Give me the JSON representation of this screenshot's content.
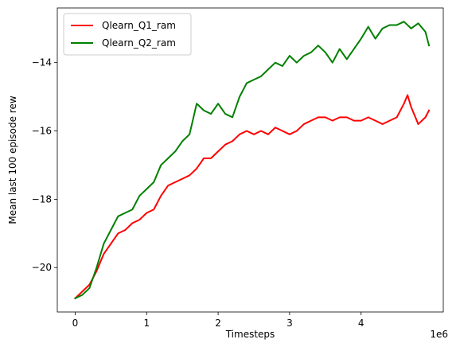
{
  "chart_data": {
    "type": "line",
    "xlabel": "Timesteps",
    "ylabel": "Mean last 100 episode rew",
    "x_offset_label": "1e6",
    "xlim": [
      -0.25,
      5.15
    ],
    "ylim": [
      -21.3,
      -12.4
    ],
    "xticks": [
      0,
      1,
      2,
      3,
      4
    ],
    "xtick_labels": [
      "0",
      "1",
      "2",
      "3",
      "4"
    ],
    "yticks": [
      -20,
      -18,
      -16,
      -14
    ],
    "ytick_labels": [
      "−20",
      "−18",
      "−16",
      "−14"
    ],
    "grid": false,
    "legend": "top-left",
    "series": [
      {
        "name": "Qlearn_Q1_ram",
        "color": "#ff0000",
        "x": [
          0,
          0.1,
          0.2,
          0.3,
          0.4,
          0.5,
          0.6,
          0.7,
          0.8,
          0.9,
          1.0,
          1.1,
          1.2,
          1.3,
          1.4,
          1.5,
          1.6,
          1.7,
          1.8,
          1.9,
          2.0,
          2.1,
          2.2,
          2.3,
          2.4,
          2.5,
          2.6,
          2.7,
          2.8,
          2.9,
          3.0,
          3.1,
          3.2,
          3.3,
          3.4,
          3.5,
          3.6,
          3.7,
          3.8,
          3.9,
          4.0,
          4.1,
          4.2,
          4.3,
          4.4,
          4.5,
          4.6,
          4.65,
          4.7,
          4.8,
          4.9,
          4.95
        ],
        "y": [
          -20.9,
          -20.7,
          -20.5,
          -20.1,
          -19.6,
          -19.3,
          -19.0,
          -18.9,
          -18.7,
          -18.6,
          -18.4,
          -18.3,
          -17.9,
          -17.6,
          -17.5,
          -17.4,
          -17.3,
          -17.1,
          -16.8,
          -16.8,
          -16.6,
          -16.4,
          -16.3,
          -16.1,
          -16.0,
          -16.1,
          -16.0,
          -16.1,
          -15.9,
          -16.0,
          -16.1,
          -16.0,
          -15.8,
          -15.7,
          -15.6,
          -15.6,
          -15.7,
          -15.6,
          -15.6,
          -15.7,
          -15.7,
          -15.6,
          -15.7,
          -15.8,
          -15.7,
          -15.6,
          -15.2,
          -14.95,
          -15.3,
          -15.8,
          -15.6,
          -15.4
        ]
      },
      {
        "name": "Qlearn_Q2_ram",
        "color": "#008000",
        "x": [
          0,
          0.1,
          0.2,
          0.3,
          0.4,
          0.5,
          0.6,
          0.7,
          0.8,
          0.9,
          1.0,
          1.1,
          1.2,
          1.3,
          1.4,
          1.5,
          1.6,
          1.7,
          1.8,
          1.9,
          2.0,
          2.1,
          2.2,
          2.3,
          2.4,
          2.5,
          2.6,
          2.7,
          2.8,
          2.9,
          3.0,
          3.1,
          3.2,
          3.3,
          3.4,
          3.5,
          3.6,
          3.7,
          3.8,
          3.9,
          4.0,
          4.1,
          4.2,
          4.3,
          4.4,
          4.5,
          4.6,
          4.7,
          4.8,
          4.9,
          4.95
        ],
        "y": [
          -20.9,
          -20.8,
          -20.6,
          -20.0,
          -19.3,
          -18.9,
          -18.5,
          -18.4,
          -18.3,
          -17.9,
          -17.7,
          -17.5,
          -17.0,
          -16.8,
          -16.6,
          -16.3,
          -16.1,
          -15.2,
          -15.4,
          -15.5,
          -15.2,
          -15.5,
          -15.6,
          -15.0,
          -14.6,
          -14.5,
          -14.4,
          -14.2,
          -14.0,
          -14.1,
          -13.8,
          -14.0,
          -13.8,
          -13.7,
          -13.5,
          -13.7,
          -14.0,
          -13.6,
          -13.9,
          -13.6,
          -13.3,
          -12.95,
          -13.3,
          -13.0,
          -12.9,
          -12.9,
          -12.8,
          -13.0,
          -12.85,
          -13.1,
          -13.5
        ]
      }
    ]
  }
}
